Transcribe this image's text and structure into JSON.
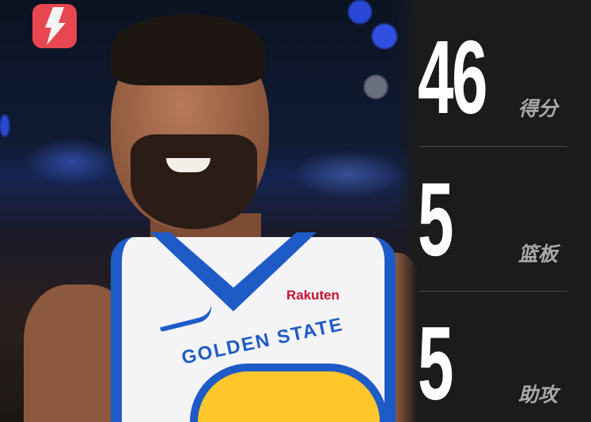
{
  "brand": {
    "logo_icon": "lightning-bolt-icon",
    "logo_color": "#e8474f"
  },
  "photo": {
    "jersey_sponsor": "Rakuten",
    "jersey_text": "GOLDEN STATE"
  },
  "stats": [
    {
      "value": "46",
      "label": "得分"
    },
    {
      "value": "5",
      "label": "篮板"
    },
    {
      "value": "5",
      "label": "助攻"
    }
  ],
  "colors": {
    "panel": "#1b1b1b",
    "value": "#ffffff",
    "label": "#a9a9a9",
    "jersey_blue": "#1f5bc6"
  }
}
